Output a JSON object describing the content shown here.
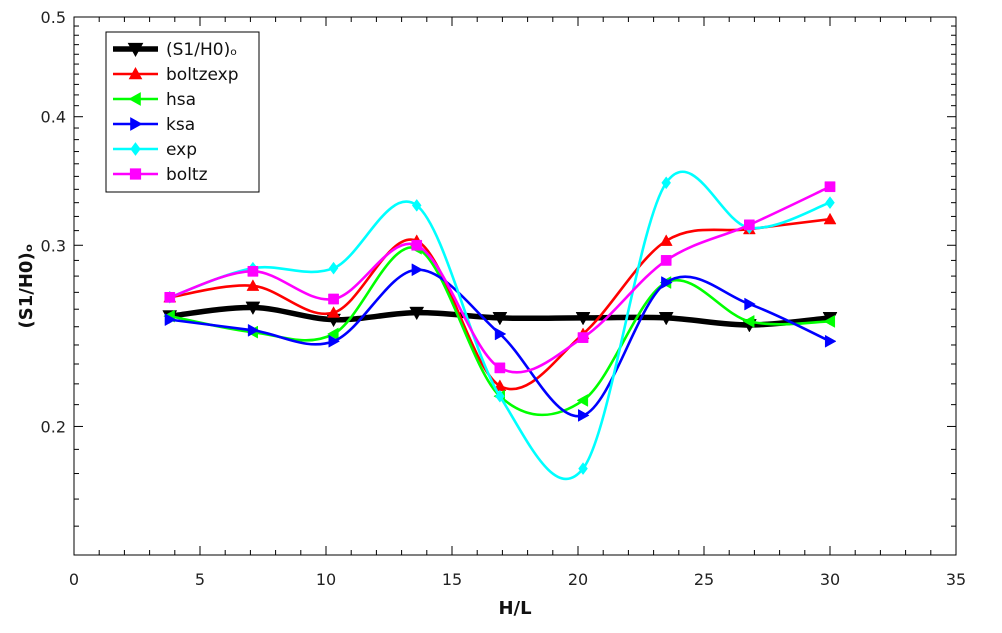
{
  "chart_data": {
    "type": "line",
    "xlabel": "H/L",
    "ylabel": "(S1/H0)ₒ",
    "xlim": [
      0,
      35
    ],
    "ylim": [
      0.15,
      0.5
    ],
    "yscale": "log",
    "x_major_ticks": [
      0,
      5,
      10,
      15,
      20,
      25,
      30,
      35
    ],
    "x_tick_labels": [
      "0",
      "5",
      "10",
      "15",
      "20",
      "25",
      "30",
      "35"
    ],
    "y_major_ticks": [
      0.2,
      0.3,
      0.4,
      0.5
    ],
    "y_tick_labels": [
      "0.2",
      "0.3",
      "0.4",
      "0.5"
    ],
    "x": [
      3.8,
      7.1,
      10.3,
      13.6,
      16.9,
      20.2,
      23.5,
      26.8,
      30.0
    ],
    "series": [
      {
        "name": "(S1/H0)ₒ",
        "color": "#000000",
        "marker": "triangle-down",
        "values": [
          0.256,
          0.261,
          0.254,
          0.258,
          0.255,
          0.255,
          0.255,
          0.251,
          0.255
        ]
      },
      {
        "name": "boltzexp",
        "color": "#ff0000",
        "marker": "triangle-up",
        "values": [
          0.267,
          0.274,
          0.258,
          0.303,
          0.219,
          0.246,
          0.303,
          0.311,
          0.318
        ]
      },
      {
        "name": "hsa",
        "color": "#00ff00",
        "marker": "triangle-left",
        "values": [
          0.256,
          0.247,
          0.246,
          0.298,
          0.214,
          0.212,
          0.276,
          0.253,
          0.253
        ]
      },
      {
        "name": "ksa",
        "color": "#0000ff",
        "marker": "triangle-right",
        "values": [
          0.254,
          0.248,
          0.242,
          0.284,
          0.246,
          0.205,
          0.276,
          0.263,
          0.242
        ]
      },
      {
        "name": "exp",
        "color": "#00ffff",
        "marker": "diamond",
        "values": [
          0.267,
          0.285,
          0.285,
          0.328,
          0.214,
          0.182,
          0.345,
          0.312,
          0.33
        ]
      },
      {
        "name": "boltz",
        "color": "#ff00ff",
        "marker": "square",
        "values": [
          0.267,
          0.283,
          0.266,
          0.3,
          0.228,
          0.244,
          0.29,
          0.314,
          0.342
        ]
      }
    ],
    "legend": "top-left",
    "grid": false
  }
}
